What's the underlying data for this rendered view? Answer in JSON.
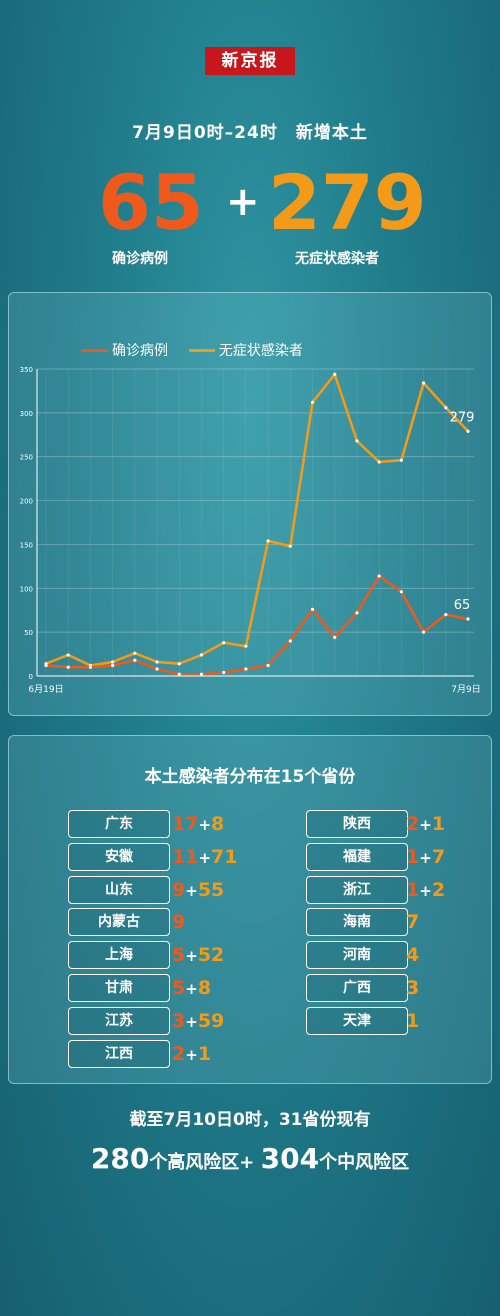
{
  "logo": "新京报",
  "headline": "7月9日0时–24时　新增本土",
  "confirmed": {
    "value": "65",
    "label": "确诊病例",
    "color": "#ef5a1c"
  },
  "plus": "+",
  "asymptomatic": {
    "value": "279",
    "label": "无症状感染者",
    "color": "#f39a18"
  },
  "chart_data": {
    "type": "line",
    "x_start_label": "6月19日",
    "x_end_label": "7月9日",
    "ylim": [
      0,
      350
    ],
    "yticks": [
      0,
      50,
      100,
      150,
      200,
      250,
      300,
      350
    ],
    "grid": true,
    "legend_position": "top-left",
    "series": [
      {
        "name": "确诊病例",
        "color": "#ef5a1c",
        "values": [
          12,
          10,
          10,
          12,
          18,
          8,
          2,
          2,
          4,
          8,
          12,
          40,
          76,
          44,
          72,
          114,
          96,
          50,
          70,
          65
        ],
        "end_label": "65"
      },
      {
        "name": "无症状感染者",
        "color": "#f39a18",
        "values": [
          14,
          24,
          12,
          16,
          26,
          16,
          14,
          24,
          38,
          34,
          154,
          148,
          312,
          344,
          268,
          244,
          246,
          334,
          306,
          279
        ],
        "end_label": "279"
      }
    ]
  },
  "distribution": {
    "title": "本土感染者分布在15个省份",
    "left": [
      {
        "name": "广东",
        "c": "17",
        "a": "8"
      },
      {
        "name": "安徽",
        "c": "11",
        "a": "71"
      },
      {
        "name": "山东",
        "c": "9",
        "a": "55"
      },
      {
        "name": "内蒙古",
        "c": "9",
        "a": ""
      },
      {
        "name": "上海",
        "c": "5",
        "a": "52"
      },
      {
        "name": "甘肃",
        "c": "5",
        "a": "8"
      },
      {
        "name": "江苏",
        "c": "3",
        "a": "59"
      },
      {
        "name": "江西",
        "c": "2",
        "a": "1"
      }
    ],
    "right": [
      {
        "name": "陕西",
        "c": "2",
        "a": "1"
      },
      {
        "name": "福建",
        "c": "1",
        "a": "7"
      },
      {
        "name": "浙江",
        "c": "1",
        "a": "2"
      },
      {
        "name": "海南",
        "c": "",
        "a": "7"
      },
      {
        "name": "河南",
        "c": "",
        "a": "4"
      },
      {
        "name": "广西",
        "c": "",
        "a": "3"
      },
      {
        "name": "天津",
        "c": "",
        "a": "1"
      }
    ]
  },
  "footer": {
    "line1": "截至7月10日0时，31省份现有",
    "high_num": "280",
    "high_text": "个高风险区+ ",
    "mid_num": "304",
    "mid_text": "个中风险区"
  }
}
